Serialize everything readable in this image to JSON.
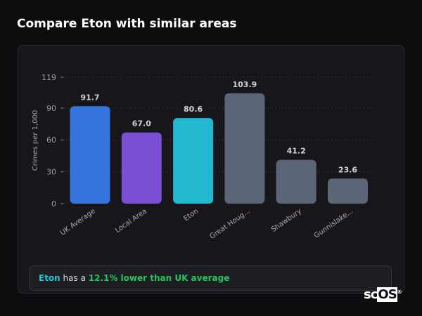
{
  "title": "Compare Eton with similar areas",
  "summary": {
    "place": "Eton",
    "middle": " has a ",
    "highlight": "12.1% lower than UK average"
  },
  "logo": "scOS",
  "chart_data": {
    "type": "bar",
    "categories": [
      "UK Average",
      "Local Area",
      "Eton",
      "Great Houg...",
      "Shawbury",
      "Gunnislake..."
    ],
    "values": [
      91.7,
      67.0,
      80.6,
      103.9,
      41.2,
      23.6
    ],
    "value_labels": [
      "91.7",
      "67.0",
      "80.6",
      "103.9",
      "41.2",
      "23.6"
    ],
    "colors": [
      "#3574db",
      "#7a4fd4",
      "#22b8cf",
      "#5a6577",
      "#5a6577",
      "#5a6577"
    ],
    "ylabel": "Crimes per 1,000",
    "yticks": [
      0,
      30,
      60,
      90,
      119
    ],
    "ylim": [
      0,
      119
    ],
    "grid": true
  }
}
